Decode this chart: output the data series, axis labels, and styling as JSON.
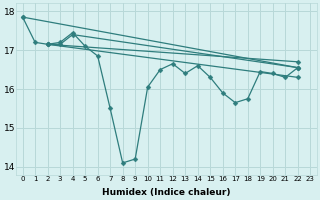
{
  "xlabel": "Humidex (Indice chaleur)",
  "xlim": [
    -0.5,
    23.5
  ],
  "ylim": [
    13.8,
    18.2
  ],
  "yticks": [
    14,
    15,
    16,
    17,
    18
  ],
  "xticks": [
    0,
    1,
    2,
    3,
    4,
    5,
    6,
    7,
    8,
    9,
    10,
    11,
    12,
    13,
    14,
    15,
    16,
    17,
    18,
    19,
    20,
    21,
    22,
    23
  ],
  "background_color": "#d8f0f0",
  "grid_color": "#b8d8d8",
  "line_color": "#2e7d7d",
  "markersize": 2.5,
  "linewidth": 0.9,
  "series": [
    {
      "x": [
        0,
        1,
        2,
        3,
        4,
        5,
        6,
        7,
        8,
        9,
        10,
        11,
        12,
        13,
        14,
        15,
        16,
        17,
        18,
        19,
        20,
        21,
        22
      ],
      "y": [
        17.85,
        17.2,
        17.15,
        17.2,
        17.45,
        17.1,
        16.85,
        15.5,
        14.1,
        14.2,
        16.05,
        16.5,
        16.65,
        16.4,
        16.6,
        16.3,
        15.9,
        15.65,
        15.75,
        16.45,
        16.4,
        16.3,
        16.55
      ]
    },
    {
      "x": [
        2,
        3,
        4,
        22
      ],
      "y": [
        17.15,
        17.15,
        17.4,
        16.55
      ]
    },
    {
      "x": [
        0,
        22
      ],
      "y": [
        17.85,
        16.55
      ]
    },
    {
      "x": [
        2,
        22
      ],
      "y": [
        17.15,
        16.7
      ]
    },
    {
      "x": [
        2,
        22
      ],
      "y": [
        17.15,
        16.3
      ]
    }
  ]
}
